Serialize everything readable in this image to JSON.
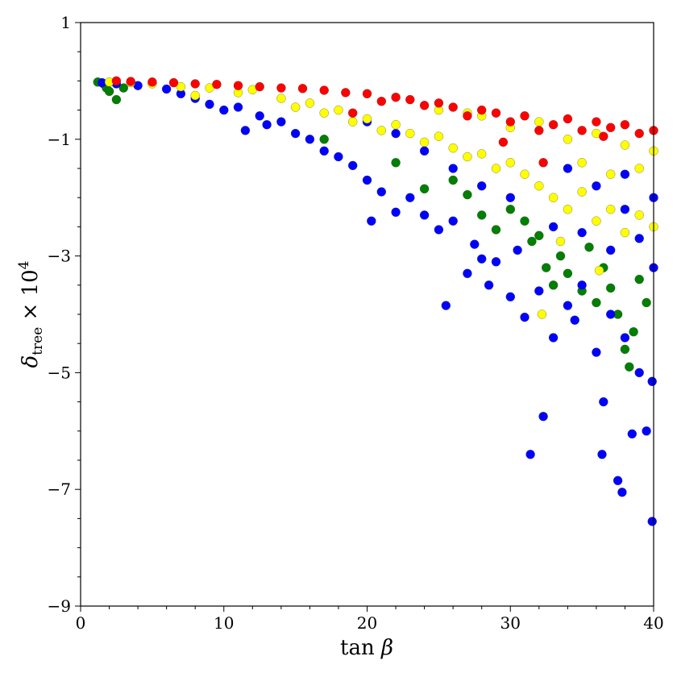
{
  "chart_data": {
    "type": "scatter",
    "title": "",
    "xlabel": "tan β",
    "ylabel": "δtree × 10^4",
    "xlim": [
      0,
      40
    ],
    "ylim": [
      -9,
      1
    ],
    "x_ticks": [
      0,
      10,
      20,
      30,
      40
    ],
    "x_tick_labels": [
      "0",
      "10",
      "20",
      "30",
      "40"
    ],
    "y_ticks": [
      -9,
      -7,
      -5,
      -3,
      -1,
      1
    ],
    "y_tick_labels": [
      "−9",
      "−7",
      "−5",
      "−3",
      "−1",
      "1"
    ],
    "grid": false,
    "legend": "none",
    "series": [
      {
        "color": "#008000",
        "points": [
          [
            1.2,
            -0.02
          ],
          [
            1.6,
            -0.05
          ],
          [
            1.8,
            -0.12
          ],
          [
            2.0,
            -0.18
          ],
          [
            2.5,
            -0.32
          ],
          [
            3.0,
            -0.12
          ],
          [
            17.0,
            -1.0
          ],
          [
            22.0,
            -1.4
          ],
          [
            24.0,
            -1.85
          ],
          [
            26.0,
            -1.7
          ],
          [
            27.0,
            -1.95
          ],
          [
            28.0,
            -2.3
          ],
          [
            29.0,
            -2.55
          ],
          [
            30.0,
            -2.2
          ],
          [
            31.0,
            -2.4
          ],
          [
            31.5,
            -2.75
          ],
          [
            32.0,
            -2.65
          ],
          [
            32.5,
            -3.2
          ],
          [
            33.0,
            -3.5
          ],
          [
            33.5,
            -3.0
          ],
          [
            34.0,
            -3.3
          ],
          [
            35.0,
            -3.6
          ],
          [
            35.5,
            -2.85
          ],
          [
            36.0,
            -3.8
          ],
          [
            36.5,
            -3.2
          ],
          [
            37.0,
            -3.55
          ],
          [
            37.5,
            -4.0
          ],
          [
            38.0,
            -4.6
          ],
          [
            38.3,
            -4.9
          ],
          [
            38.6,
            -4.3
          ],
          [
            39.0,
            -3.4
          ],
          [
            39.5,
            -3.8
          ]
        ]
      },
      {
        "color": "#0000ff",
        "points": [
          [
            1.5,
            -0.03
          ],
          [
            2.5,
            -0.05
          ],
          [
            4.0,
            -0.08
          ],
          [
            6.0,
            -0.14
          ],
          [
            7.0,
            -0.22
          ],
          [
            8.0,
            -0.3
          ],
          [
            9.0,
            -0.4
          ],
          [
            10.0,
            -0.5
          ],
          [
            11.0,
            -0.45
          ],
          [
            11.5,
            -0.85
          ],
          [
            12.5,
            -0.6
          ],
          [
            13.0,
            -0.75
          ],
          [
            14.0,
            -0.7
          ],
          [
            15.0,
            -0.9
          ],
          [
            16.0,
            -1.0
          ],
          [
            17.0,
            -1.2
          ],
          [
            18.0,
            -1.3
          ],
          [
            19.0,
            -1.45
          ],
          [
            20.0,
            -1.7
          ],
          [
            20.3,
            -2.4
          ],
          [
            21.0,
            -1.9
          ],
          [
            22.0,
            -2.25
          ],
          [
            23.0,
            -2.0
          ],
          [
            24.0,
            -2.3
          ],
          [
            25.0,
            -2.55
          ],
          [
            25.5,
            -3.85
          ],
          [
            26.0,
            -2.4
          ],
          [
            27.0,
            -3.3
          ],
          [
            27.5,
            -2.8
          ],
          [
            28.0,
            -3.05
          ],
          [
            28.5,
            -3.5
          ],
          [
            29.0,
            -3.1
          ],
          [
            30.0,
            -3.7
          ],
          [
            30.5,
            -2.9
          ],
          [
            31.0,
            -4.05
          ],
          [
            31.4,
            -6.4
          ],
          [
            32.0,
            -3.6
          ],
          [
            32.3,
            -5.75
          ],
          [
            33.0,
            -4.4
          ],
          [
            34.0,
            -3.85
          ],
          [
            34.5,
            -4.1
          ],
          [
            35.0,
            -3.5
          ],
          [
            36.0,
            -4.65
          ],
          [
            36.5,
            -5.5
          ],
          [
            36.4,
            -6.4
          ],
          [
            37.0,
            -4.0
          ],
          [
            37.5,
            -6.85
          ],
          [
            37.8,
            -7.05
          ],
          [
            38.0,
            -4.4
          ],
          [
            38.5,
            -6.05
          ],
          [
            39.0,
            -5.0
          ],
          [
            39.5,
            -6.0
          ],
          [
            39.9,
            -7.55
          ],
          [
            39.9,
            -5.15
          ],
          [
            33.0,
            -2.5
          ],
          [
            35.0,
            -2.6
          ],
          [
            37.0,
            -2.9
          ],
          [
            38.0,
            -2.2
          ],
          [
            39.0,
            -2.7
          ],
          [
            40.0,
            -3.2
          ],
          [
            30.0,
            -2.0
          ],
          [
            28.0,
            -1.8
          ],
          [
            26.0,
            -1.5
          ],
          [
            24.0,
            -1.2
          ],
          [
            22.0,
            -0.9
          ],
          [
            20.0,
            -0.7
          ],
          [
            34.0,
            -1.5
          ],
          [
            36.0,
            -1.8
          ],
          [
            38.0,
            -1.6
          ],
          [
            40.0,
            -2.0
          ]
        ]
      },
      {
        "color": "#ffff00",
        "points": [
          [
            2.0,
            -0.02
          ],
          [
            3.5,
            -0.03
          ],
          [
            5.0,
            -0.05
          ],
          [
            7.0,
            -0.1
          ],
          [
            8.0,
            -0.25
          ],
          [
            9.0,
            -0.12
          ],
          [
            11.0,
            -0.2
          ],
          [
            12.0,
            -0.15
          ],
          [
            14.0,
            -0.3
          ],
          [
            15.0,
            -0.45
          ],
          [
            16.0,
            -0.38
          ],
          [
            17.0,
            -0.55
          ],
          [
            18.0,
            -0.5
          ],
          [
            19.0,
            -0.7
          ],
          [
            20.0,
            -0.65
          ],
          [
            21.0,
            -0.85
          ],
          [
            22.0,
            -0.75
          ],
          [
            23.0,
            -0.9
          ],
          [
            24.0,
            -1.05
          ],
          [
            25.0,
            -0.95
          ],
          [
            26.0,
            -1.15
          ],
          [
            27.0,
            -1.3
          ],
          [
            28.0,
            -1.25
          ],
          [
            29.0,
            -1.5
          ],
          [
            30.0,
            -1.4
          ],
          [
            31.0,
            -1.6
          ],
          [
            32.0,
            -1.8
          ],
          [
            32.2,
            -4.0
          ],
          [
            33.0,
            -2.0
          ],
          [
            33.5,
            -2.75
          ],
          [
            34.0,
            -2.2
          ],
          [
            35.0,
            -1.9
          ],
          [
            36.0,
            -2.4
          ],
          [
            36.2,
            -3.25
          ],
          [
            37.0,
            -2.2
          ],
          [
            38.0,
            -2.6
          ],
          [
            39.0,
            -2.3
          ],
          [
            40.0,
            -2.5
          ],
          [
            28.0,
            -0.6
          ],
          [
            30.0,
            -0.8
          ],
          [
            32.0,
            -0.7
          ],
          [
            34.0,
            -1.0
          ],
          [
            36.0,
            -0.9
          ],
          [
            38.0,
            -1.1
          ],
          [
            40.0,
            -1.2
          ],
          [
            25.0,
            -0.5
          ],
          [
            27.0,
            -0.55
          ],
          [
            35.0,
            -1.4
          ],
          [
            37.0,
            -1.6
          ],
          [
            39.0,
            -1.5
          ]
        ]
      },
      {
        "color": "#ff0000",
        "points": [
          [
            2.5,
            0.0
          ],
          [
            3.5,
            -0.01
          ],
          [
            5.0,
            -0.02
          ],
          [
            6.5,
            -0.03
          ],
          [
            8.0,
            -0.05
          ],
          [
            9.5,
            -0.06
          ],
          [
            11.0,
            -0.08
          ],
          [
            12.5,
            -0.1
          ],
          [
            14.0,
            -0.12
          ],
          [
            15.5,
            -0.13
          ],
          [
            17.0,
            -0.16
          ],
          [
            18.5,
            -0.2
          ],
          [
            19.0,
            -0.55
          ],
          [
            20.0,
            -0.22
          ],
          [
            21.0,
            -0.35
          ],
          [
            22.0,
            -0.28
          ],
          [
            23.0,
            -0.32
          ],
          [
            24.0,
            -0.42
          ],
          [
            25.0,
            -0.38
          ],
          [
            26.0,
            -0.45
          ],
          [
            27.0,
            -0.6
          ],
          [
            28.0,
            -0.5
          ],
          [
            29.0,
            -0.55
          ],
          [
            29.5,
            -1.05
          ],
          [
            30.0,
            -0.7
          ],
          [
            31.0,
            -0.6
          ],
          [
            32.0,
            -0.85
          ],
          [
            32.3,
            -1.4
          ],
          [
            33.0,
            -0.75
          ],
          [
            34.0,
            -0.65
          ],
          [
            35.0,
            -0.85
          ],
          [
            36.0,
            -0.7
          ],
          [
            36.5,
            -0.95
          ],
          [
            37.0,
            -0.8
          ],
          [
            38.0,
            -0.75
          ],
          [
            39.0,
            -0.9
          ],
          [
            40.0,
            -0.85
          ]
        ]
      }
    ]
  }
}
